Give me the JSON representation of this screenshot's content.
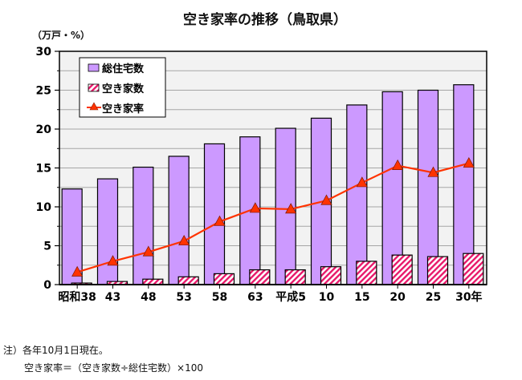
{
  "chart_data": {
    "type": "bar",
    "title": "空き家率の推移（鳥取県）",
    "ylabel": "（万戸・%）",
    "xlabel": "",
    "ylim": [
      0,
      30
    ],
    "yticks": [
      "0",
      "5",
      "10",
      "15",
      "20",
      "25",
      "30"
    ],
    "grid": true,
    "legend_position": "top-left",
    "categories": [
      "昭和38",
      "43",
      "48",
      "53",
      "58",
      "63",
      "平成5",
      "10",
      "15",
      "20",
      "25",
      "30年"
    ],
    "series": [
      {
        "name": "総住宅数",
        "kind": "bar",
        "color": "#cc99ff",
        "values": [
          12.3,
          13.6,
          15.1,
          16.5,
          18.1,
          19.0,
          20.1,
          21.4,
          23.1,
          24.8,
          25.0,
          25.7
        ]
      },
      {
        "name": "空き家数",
        "kind": "bar-hatched",
        "color": "#e8186a",
        "values": [
          0.2,
          0.4,
          0.7,
          1.0,
          1.4,
          1.9,
          1.9,
          2.3,
          3.0,
          3.8,
          3.6,
          4.0
        ]
      },
      {
        "name": "空き家率",
        "kind": "line",
        "color": "#ff3300",
        "values": [
          1.6,
          3.0,
          4.2,
          5.6,
          8.1,
          9.8,
          9.7,
          10.8,
          13.1,
          15.3,
          14.4,
          15.6
        ]
      }
    ]
  },
  "notes": {
    "line1": "注）各年10月1日現在。",
    "line2": "空き家率＝（空き家数÷総住宅数）×100"
  }
}
